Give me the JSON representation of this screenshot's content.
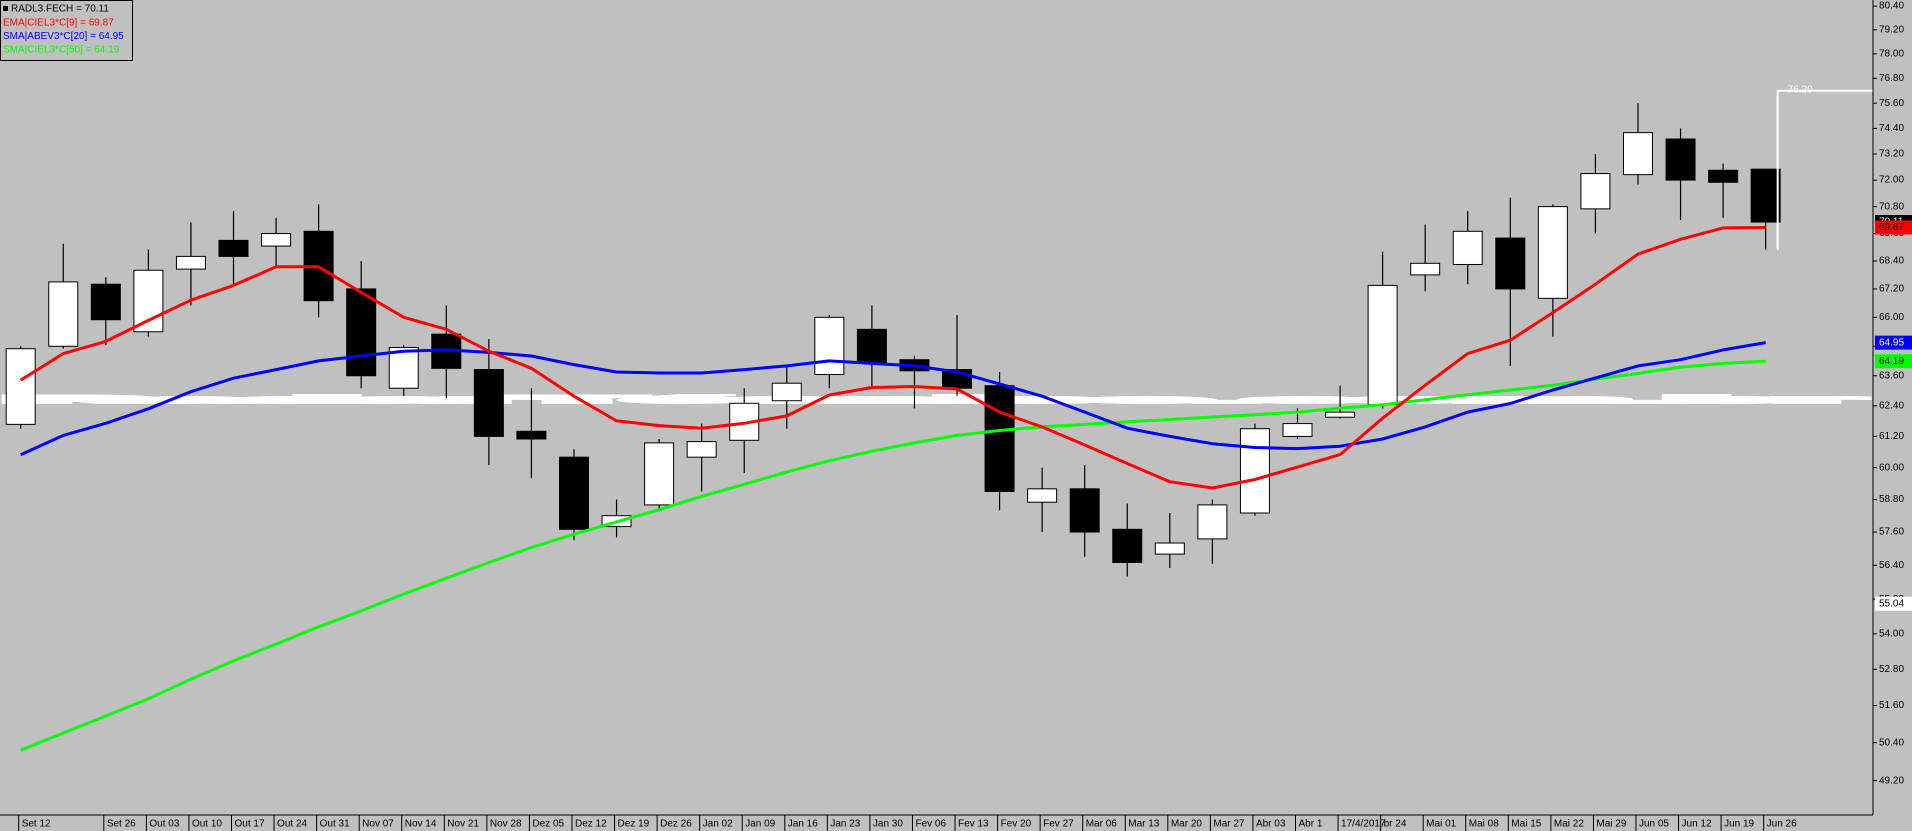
{
  "chart_data": {
    "type": "candlestick",
    "log_scale": true,
    "watermark": "RadarTécnico.com.br",
    "categories": [
      "Set 12",
      null,
      "Set 26",
      "Out 03",
      "Out 10",
      "Out 17",
      "Out 24",
      "Out 31",
      "Nov 07",
      "Nov 14",
      "Nov 21",
      "Nov 28",
      "Dez 05",
      "Dez 12",
      "Dez 19",
      "Dez 26",
      "Jan 02",
      "Jan 09",
      "Jan 16",
      "Jan 23",
      "Jan 30",
      "Fev 06",
      "Fev 13",
      "Fev 20",
      "Fev 27",
      "Mar 06",
      "Mar 13",
      "Mar 20",
      "Mar 27",
      "Abr 03",
      "Abr 1",
      "17/4/2017",
      "br 24",
      "Mai 01",
      "Mai 08",
      "Mai 15",
      "Mai 22",
      "Mai 29",
      "Jun 05",
      "Jun 12",
      "Jun 19",
      "Jun 26"
    ],
    "candles": {
      "name": "RADL3.FECH = 70.11",
      "up_color": "#ffffff",
      "down_color": "#000000",
      "open": [
        61.67,
        64.8,
        67.4,
        65.4,
        68.05,
        69.3,
        69.05,
        69.7,
        67.2,
        63.1,
        65.3,
        63.85,
        61.4,
        60.4,
        57.8,
        58.6,
        60.4,
        61.05,
        62.6,
        63.65,
        65.5,
        64.25,
        63.85,
        63.2,
        58.7,
        59.2,
        57.7,
        56.8,
        57.35,
        58.3,
        61.2,
        61.95,
        62.45,
        67.8,
        68.25,
        69.4,
        66.8,
        70.7,
        72.25,
        73.9,
        72.45,
        72.5
      ],
      "high": [
        64.8,
        69.15,
        67.7,
        68.9,
        70.1,
        70.6,
        70.3,
        70.9,
        68.4,
        64.85,
        66.5,
        65.1,
        63.1,
        60.7,
        58.8,
        61.1,
        61.7,
        63.1,
        64.0,
        66.1,
        66.5,
        64.4,
        66.1,
        63.75,
        60.0,
        60.1,
        58.65,
        58.3,
        58.8,
        61.7,
        62.3,
        63.2,
        68.8,
        70.0,
        70.6,
        71.2,
        70.9,
        73.2,
        75.6,
        74.4,
        72.75,
        72.5
      ],
      "low": [
        61.5,
        64.7,
        64.85,
        65.2,
        66.5,
        67.3,
        68.2,
        66.0,
        63.1,
        62.8,
        62.7,
        60.1,
        59.6,
        57.3,
        57.4,
        58.4,
        59.1,
        59.8,
        61.5,
        63.1,
        63.1,
        62.3,
        62.8,
        58.4,
        57.6,
        56.7,
        56.0,
        56.3,
        56.45,
        58.2,
        61.1,
        61.9,
        62.3,
        67.1,
        67.4,
        64.0,
        65.2,
        69.6,
        71.8,
        70.2,
        70.3,
        68.89
      ],
      "close": [
        64.7,
        67.5,
        65.9,
        68.0,
        68.6,
        68.6,
        69.6,
        66.7,
        63.6,
        64.75,
        63.9,
        61.2,
        61.1,
        57.7,
        58.2,
        60.95,
        61.0,
        62.5,
        63.3,
        66.0,
        64.1,
        63.8,
        63.1,
        59.1,
        59.2,
        57.6,
        56.5,
        57.2,
        58.6,
        61.5,
        61.7,
        62.15,
        67.35,
        68.3,
        69.7,
        67.2,
        70.8,
        72.3,
        74.2,
        72.0,
        71.9,
        70.11
      ]
    },
    "series": [
      {
        "name": "EMA|CIEL3*C[9] = 69.87",
        "color": "#ff0000",
        "values": [
          63.42,
          64.5,
          65.0,
          65.87,
          66.72,
          67.35,
          68.15,
          68.15,
          67.05,
          66.0,
          65.5,
          64.6,
          63.9,
          62.78,
          61.81,
          61.62,
          61.52,
          61.71,
          62.0,
          62.83,
          63.13,
          63.17,
          63.07,
          62.15,
          61.57,
          60.87,
          60.16,
          59.47,
          59.23,
          59.55,
          60.02,
          60.5,
          61.91,
          63.22,
          64.5,
          65.05,
          66.2,
          67.4,
          68.7,
          69.35,
          69.85,
          69.87
        ]
      },
      {
        "name": "SMA|ABEV3*C[20] = 64.95",
        "color": "#0000ff",
        "values": [
          60.49,
          61.24,
          61.71,
          62.28,
          62.96,
          63.5,
          63.85,
          64.2,
          64.4,
          64.6,
          64.65,
          64.55,
          64.4,
          64.05,
          63.75,
          63.71,
          63.71,
          63.85,
          64.0,
          64.2,
          64.1,
          64.0,
          63.75,
          63.27,
          62.78,
          62.15,
          61.52,
          61.2,
          60.92,
          60.77,
          60.73,
          60.82,
          61.1,
          61.57,
          62.15,
          62.49,
          63.03,
          63.51,
          64.0,
          64.25,
          64.65,
          64.95
        ]
      },
      {
        "name": "SMA|CIEL3*C[50] = 64.19",
        "color": "#00ff00",
        "values": [
          50.16,
          50.71,
          51.26,
          51.82,
          52.47,
          53.08,
          53.65,
          54.24,
          54.79,
          55.38,
          55.94,
          56.5,
          57.04,
          57.52,
          57.97,
          58.42,
          58.92,
          59.37,
          59.84,
          60.26,
          60.63,
          60.95,
          61.24,
          61.43,
          61.57,
          61.67,
          61.77,
          61.86,
          61.96,
          62.05,
          62.15,
          62.3,
          62.44,
          62.64,
          62.84,
          63.03,
          63.22,
          63.46,
          63.7,
          63.95,
          64.1,
          64.19
        ]
      }
    ],
    "value_tags": [
      {
        "value": 70.11,
        "bg": "#000000",
        "fg": "#ffffff"
      },
      {
        "value": 69.87,
        "bg": "#ff0000",
        "fg": "#000000"
      },
      {
        "value": 64.95,
        "bg": "#0000ff",
        "fg": "#ffffff"
      },
      {
        "value": 64.19,
        "bg": "#00ff00",
        "fg": "#000000"
      },
      {
        "value": 55.04,
        "bg": "#ffffff",
        "fg": "#000000"
      }
    ],
    "cursor": {
      "value": 76.2,
      "label": "76.20"
    },
    "ylim": [
      48.14,
      80.71
    ],
    "yticks": [
      {
        "value": 49.2,
        "label": "49.20"
      },
      {
        "value": 50.4,
        "label": "50.40"
      },
      {
        "value": 51.6,
        "label": "51.60"
      },
      {
        "value": 52.8,
        "label": "52.80"
      },
      {
        "value": 54,
        "label": "54.00"
      },
      {
        "value": 55.2,
        "label": "55.20"
      },
      {
        "value": 56.4,
        "label": "56.40"
      },
      {
        "value": 57.6,
        "label": "57.60"
      },
      {
        "value": 58.8,
        "label": "58.80"
      },
      {
        "value": 60,
        "label": "60.00"
      },
      {
        "value": 61.2,
        "label": "61.20"
      },
      {
        "value": 62.4,
        "label": "62.40"
      },
      {
        "value": 63.6,
        "label": "63.60"
      },
      {
        "value": 64.8,
        "label": "64.80"
      },
      {
        "value": 66,
        "label": "66.00"
      },
      {
        "value": 67.2,
        "label": "67.20"
      },
      {
        "value": 68.4,
        "label": "68.40"
      },
      {
        "value": 69.6,
        "label": "69.60"
      },
      {
        "value": 70.8,
        "label": "70.80"
      },
      {
        "value": 72,
        "label": "72.00"
      },
      {
        "value": 73.2,
        "label": "73.20"
      },
      {
        "value": 74.4,
        "label": "74.40"
      },
      {
        "value": 75.6,
        "label": "75.60"
      },
      {
        "value": 76.8,
        "label": "76.80"
      },
      {
        "value": 78,
        "label": "78.00"
      },
      {
        "value": 79.2,
        "label": "79.20"
      },
      {
        "value": 80.4,
        "label": "80.40"
      }
    ]
  }
}
